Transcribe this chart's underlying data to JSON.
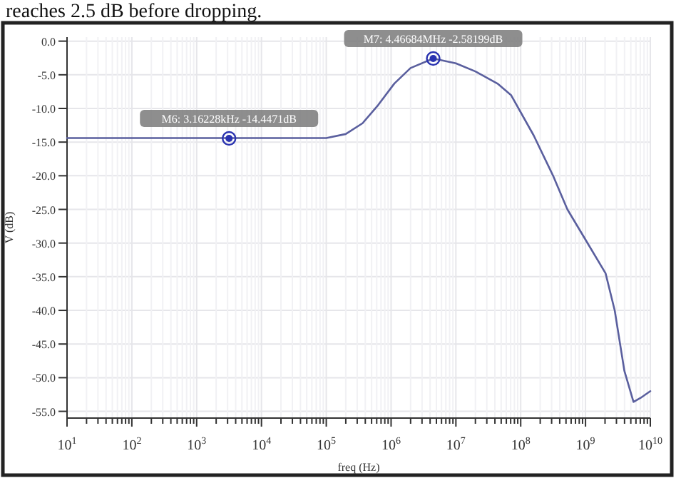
{
  "chart_data": {
    "type": "line",
    "xlabel": "freq (Hz)",
    "ylabel": "V (dB)",
    "log": "x",
    "xlim": [
      10,
      10000000000
    ],
    "ylim": [
      -56,
      0.6
    ],
    "xticks": [
      {
        "value": 10,
        "label": "10$^{1}$"
      },
      {
        "value": 100,
        "label": "10$^{2}$"
      },
      {
        "value": 1000,
        "label": "10$^{3}$"
      },
      {
        "value": 10000,
        "label": "10$^{4}$"
      },
      {
        "value": 100000,
        "label": "10$^{5}$"
      },
      {
        "value": 1000000,
        "label": "10$^{6}$"
      },
      {
        "value": 10000000,
        "label": "10$^{7}$"
      },
      {
        "value": 100000000,
        "label": "10$^{8}$"
      },
      {
        "value": 1000000000,
        "label": "10$^{9}$"
      },
      {
        "value": 10000000000,
        "label": "10$^{10}$"
      }
    ],
    "yticks": [
      {
        "value": 0,
        "label": "0.0"
      },
      {
        "value": -5,
        "label": "-5.0"
      },
      {
        "value": -10,
        "label": "-10.0"
      },
      {
        "value": -15,
        "label": "-15.0"
      },
      {
        "value": -20,
        "label": "-20.0"
      },
      {
        "value": -25,
        "label": "-25.0"
      },
      {
        "value": -30,
        "label": "-30.0"
      },
      {
        "value": -35,
        "label": "-35.0"
      },
      {
        "value": -40,
        "label": "-40.0"
      },
      {
        "value": -45,
        "label": "-45.0"
      },
      {
        "value": -50,
        "label": "-50.0"
      },
      {
        "value": -55,
        "label": "-55.0"
      }
    ],
    "grid": true,
    "series": [
      {
        "color": "#5a5f9e",
        "marker": "none",
        "x": [
          10,
          3162.28,
          100000,
          199526,
          363000,
          631000,
          1122000,
          1995000,
          4466840,
          10000000,
          20000000,
          43700000,
          70800000,
          158500000,
          316000000,
          525000000,
          1000000000,
          2040000000,
          2820000000,
          3980000000,
          5500000000,
          7080000000,
          10000000000
        ],
        "values": [
          -14.4,
          -14.4,
          -14.4,
          -13.8,
          -12.2,
          -9.5,
          -6.3,
          -4.0,
          -2.58,
          -3.3,
          -4.5,
          -6.3,
          -8,
          -14,
          -20,
          -25,
          -29.5,
          -34.5,
          -40,
          -49,
          -53.6,
          -53,
          -52
        ]
      },
      {
        "type": "scatter",
        "color": "#2a33b0",
        "marker": "circle",
        "x": [
          3162.28,
          4466840
        ],
        "values": [
          -14.4471,
          -2.58199
        ]
      }
    ],
    "annotations": [
      "reaches 2.5 dB before dropping.",
      {
        "text": "M6: 3.16228kHz -14.4471dB",
        "x": 3162.28,
        "y": -14.4471
      },
      {
        "text": "M7: 4.46684MHz -2.58199dB",
        "x": 4466840,
        "y": -2.58199
      }
    ]
  }
}
